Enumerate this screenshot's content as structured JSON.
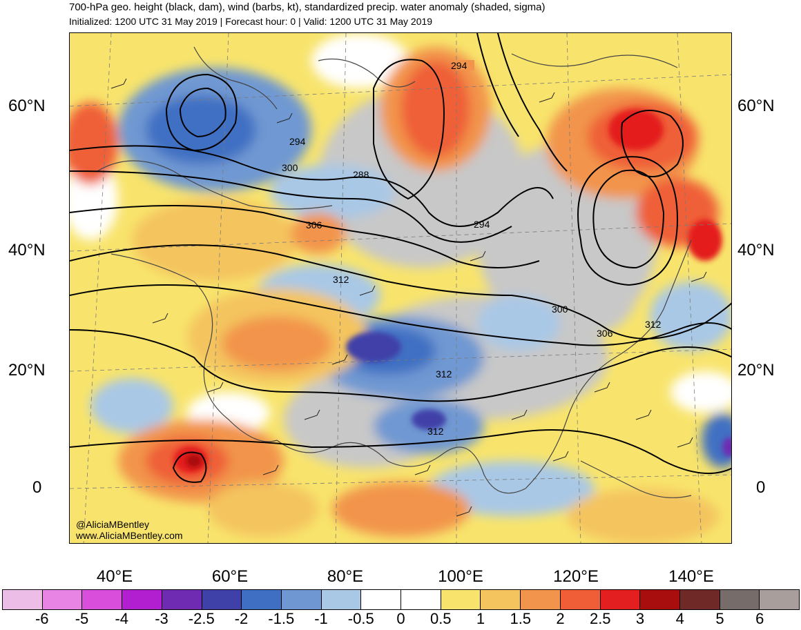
{
  "header": {
    "title": "700-hPa geo. height (black, dam), wind (barbs, kt), standardized precip. water anomaly (shaded, sigma)",
    "subtitle": "Initialized: 1200 UTC 31 May 2019 | Forecast hour: 0 | Valid: 1200 UTC 31 May 2019"
  },
  "axes": {
    "lat_labels": [
      "60°N",
      "40°N",
      "20°N",
      "0"
    ],
    "lon_labels": [
      "40°E",
      "60°E",
      "80°E",
      "100°E",
      "120°E",
      "140°E"
    ]
  },
  "contour_labels": [
    "294",
    "300",
    "288",
    "306",
    "294",
    "294",
    "312",
    "300",
    "306",
    "312",
    "312",
    "312"
  ],
  "credit": {
    "handle": "@AliciaMBentley",
    "website": "www.AliciaMBentley.com"
  },
  "colorbar": {
    "labels": [
      "-6",
      "-5",
      "-4",
      "-3",
      "-2.5",
      "-2",
      "-1.5",
      "-1",
      "-0.5",
      "0",
      "0.5",
      "1",
      "1.5",
      "2",
      "2.5",
      "3",
      "4",
      "5",
      "6"
    ],
    "colors": [
      "#ecbde6",
      "#e884e4",
      "#d94fdb",
      "#b11fd1",
      "#6f2bb2",
      "#3f41a8",
      "#3f6fc3",
      "#6f98d2",
      "#a9c8e6",
      "#ffffff",
      "#ffffff",
      "#f8e46c",
      "#f4c45e",
      "#f2944b",
      "#ef5e37",
      "#e41f1f",
      "#a80e0e",
      "#6f2a28",
      "#766d6b",
      "#a89e9c"
    ]
  },
  "anomaly_colors": {
    "neutral": "#ffffff",
    "positive_weak": "#f8e46c",
    "positive_mid": "#f4c45e",
    "positive_strong": "#f2944b",
    "positive_very": "#ef5e37",
    "positive_max": "#e41f1f",
    "negative_weak": "#a9c8e6",
    "negative_mid": "#6f98d2",
    "negative_strong": "#3f6fc3",
    "negative_very": "#3f41a8",
    "negative_max": "#6f2bb2",
    "land_gray": "#c8c8c8"
  }
}
